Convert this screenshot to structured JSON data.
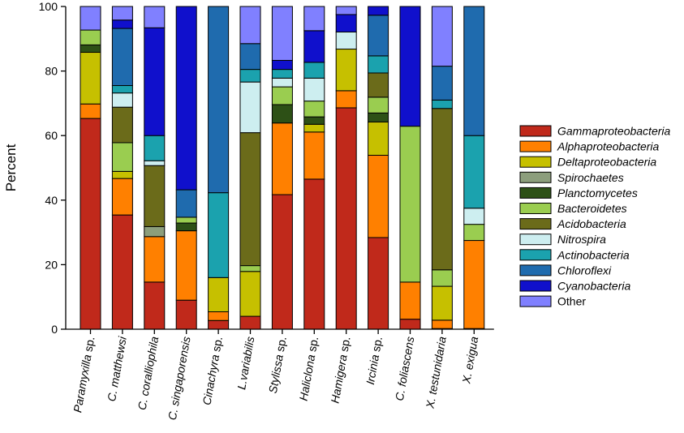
{
  "chart_data": {
    "type": "bar",
    "stacked": true,
    "title": "",
    "xlabel": "",
    "ylabel": "Percent",
    "ylim": [
      0,
      100
    ],
    "yticks": [
      0,
      20,
      40,
      60,
      80,
      100
    ],
    "legend_position": "right",
    "categories": [
      "Paramyxilla sp.",
      "C. matthewsi",
      "C. coralliophila",
      "C. singaporensis",
      "Cinachyra sp.",
      "L.variabilis",
      "Stylissa sp.",
      "Haliclona sp.",
      "Hamigera sp.",
      "Ircinia sp.",
      "C. foliascens",
      "X. testunidaria",
      "X. exigua"
    ],
    "series": [
      {
        "name": "Gammaproteobacteria",
        "italic": true,
        "color": "#C0291B",
        "values": [
          65.3,
          35.4,
          14.6,
          9.0,
          2.7,
          4.0,
          41.7,
          46.5,
          68.6,
          28.4,
          3.1,
          0.2,
          0.2
        ]
      },
      {
        "name": "Alphaproteobacteria",
        "italic": true,
        "color": "#FF8000",
        "values": [
          4.5,
          11.3,
          14.1,
          21.5,
          2.7,
          0.0,
          22.2,
          14.6,
          5.3,
          25.5,
          11.5,
          2.6,
          27.3
        ]
      },
      {
        "name": "Deltaproteobacteria",
        "italic": true,
        "color": "#C6C000",
        "values": [
          16.0,
          2.2,
          0.0,
          0.0,
          10.6,
          13.9,
          0.0,
          2.4,
          12.9,
          10.3,
          0.0,
          10.5,
          0.0
        ]
      },
      {
        "name": "Spirochaetes",
        "italic": true,
        "color": "#8C9E7C",
        "values": [
          0.0,
          0.0,
          3.1,
          0.0,
          0.0,
          0.0,
          0.0,
          0.0,
          0.0,
          0.0,
          0.0,
          0.0,
          0.0
        ]
      },
      {
        "name": "Planctomycetes",
        "italic": true,
        "color": "#2D5016",
        "values": [
          2.3,
          0.0,
          0.0,
          2.4,
          0.0,
          0.0,
          5.7,
          2.3,
          0.0,
          2.8,
          0.0,
          0.0,
          0.0
        ]
      },
      {
        "name": "Bacteroidetes",
        "italic": true,
        "color": "#9ACD50",
        "values": [
          4.6,
          8.9,
          0.0,
          1.8,
          0.0,
          1.8,
          5.5,
          4.9,
          0.0,
          4.9,
          48.3,
          5.1,
          5.0
        ]
      },
      {
        "name": "Acidobacteria",
        "italic": true,
        "color": "#6B6B1A",
        "values": [
          0.0,
          11.0,
          18.9,
          0.0,
          0.0,
          41.2,
          0.0,
          0.0,
          0.0,
          7.5,
          0.0,
          50.0,
          0.0
        ]
      },
      {
        "name": "Nitrospira",
        "italic": true,
        "color": "#CDEEF0",
        "values": [
          0.0,
          4.4,
          1.5,
          0.0,
          0.0,
          15.7,
          2.7,
          7.1,
          5.3,
          0.0,
          0.0,
          0.0,
          5.0
        ]
      },
      {
        "name": "Actinobacteria",
        "italic": true,
        "color": "#1BA2AE",
        "values": [
          0.0,
          2.3,
          7.8,
          0.0,
          26.3,
          3.9,
          2.7,
          4.9,
          0.0,
          5.3,
          0.0,
          2.6,
          22.5
        ]
      },
      {
        "name": "Chloroflexi",
        "italic": true,
        "color": "#1F6BAE",
        "values": [
          0.0,
          17.7,
          0.0,
          8.5,
          57.7,
          8.0,
          0.0,
          0.0,
          0.0,
          12.6,
          0.0,
          10.5,
          40.0
        ]
      },
      {
        "name": "Cyanobacteria",
        "italic": true,
        "color": "#1010CC",
        "values": [
          0.0,
          2.6,
          33.4,
          56.8,
          0.0,
          0.0,
          2.8,
          9.8,
          5.4,
          2.7,
          37.1,
          0.0,
          0.0
        ]
      },
      {
        "name": "Other",
        "italic": false,
        "color": "#8080FF",
        "values": [
          7.3,
          4.2,
          6.6,
          0.0,
          0.0,
          11.5,
          16.7,
          7.5,
          2.5,
          0.0,
          0.0,
          18.5,
          0.0
        ]
      }
    ]
  }
}
